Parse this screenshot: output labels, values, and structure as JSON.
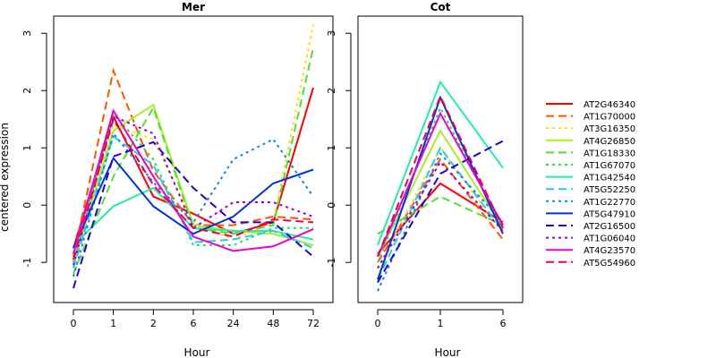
{
  "chart_data": [
    {
      "type": "line",
      "title": "Mer",
      "xlabel": "Hour",
      "ylabel": "centered expression",
      "categories": [
        "0",
        "1",
        "2",
        "6",
        "24",
        "48",
        "72"
      ],
      "ylim": [
        -1.7,
        3.3
      ],
      "yticks": [
        -1,
        0,
        1,
        2,
        3
      ],
      "grid": false,
      "series": [
        {
          "name": "AT2G46340",
          "values": [
            -0.75,
            1.55,
            0.15,
            -0.15,
            -0.5,
            -0.3,
            2.05
          ]
        },
        {
          "name": "AT1G70000",
          "values": [
            -0.9,
            2.35,
            0.6,
            -0.35,
            -0.35,
            -0.2,
            -0.25
          ]
        },
        {
          "name": "AT3G16350",
          "values": [
            -1.1,
            1.4,
            1.15,
            -0.3,
            -0.6,
            -0.3,
            3.15
          ]
        },
        {
          "name": "AT4G26850",
          "values": [
            -1.0,
            1.3,
            1.75,
            -0.35,
            -0.45,
            -0.5,
            -0.7
          ]
        },
        {
          "name": "AT1G18330",
          "values": [
            -1.2,
            0.5,
            1.7,
            -0.4,
            -0.5,
            -0.35,
            2.75
          ]
        },
        {
          "name": "AT1G67070",
          "values": [
            -1.0,
            1.6,
            0.8,
            -0.7,
            -0.7,
            -0.4,
            -0.4
          ]
        },
        {
          "name": "AT1G42540",
          "values": [
            -0.7,
            -0.02,
            0.3,
            -0.4,
            -0.45,
            -0.45,
            -0.6
          ]
        },
        {
          "name": "AT5G52250",
          "values": [
            -1.1,
            1.2,
            0.7,
            -0.65,
            -0.6,
            -0.45,
            -0.75
          ]
        },
        {
          "name": "AT1G22770",
          "values": [
            -1.25,
            1.25,
            0.4,
            -0.3,
            0.8,
            1.15,
            0.15
          ]
        },
        {
          "name": "AT5G47910",
          "values": [
            -0.75,
            0.82,
            -0.02,
            -0.5,
            -0.2,
            0.38,
            0.62
          ]
        },
        {
          "name": "AT2G16500",
          "values": [
            -1.45,
            0.85,
            1.1,
            0.3,
            -0.3,
            -0.3,
            -0.9
          ]
        },
        {
          "name": "AT1G06040",
          "values": [
            -1.05,
            1.55,
            1.25,
            -0.4,
            0.05,
            0.05,
            -0.2
          ]
        },
        {
          "name": "AT4G23570",
          "values": [
            -0.85,
            1.65,
            0.5,
            -0.55,
            -0.8,
            -0.72,
            -0.42
          ]
        },
        {
          "name": "AT5G54960",
          "values": [
            -0.95,
            1.5,
            0.35,
            -0.4,
            -0.55,
            -0.25,
            -0.3
          ]
        }
      ]
    },
    {
      "type": "line",
      "title": "Cot",
      "xlabel": "Hour",
      "ylabel": "",
      "categories": [
        "0",
        "1",
        "6"
      ],
      "ylim": [
        -1.7,
        3.3
      ],
      "yticks": [
        -1,
        0,
        1,
        2,
        3
      ],
      "grid": false,
      "series": [
        {
          "name": "AT2G46340",
          "values": [
            -0.85,
            0.38,
            -0.3
          ]
        },
        {
          "name": "AT1G70000",
          "values": [
            -1.0,
            0.8,
            -0.6
          ]
        },
        {
          "name": "AT3G16350",
          "values": [
            -1.1,
            1.0,
            -0.5
          ]
        },
        {
          "name": "AT4G26850",
          "values": [
            -0.9,
            1.3,
            -0.4
          ]
        },
        {
          "name": "AT1G18330",
          "values": [
            -0.5,
            0.15,
            -0.35
          ]
        },
        {
          "name": "AT1G67070",
          "values": [
            -1.0,
            1.7,
            -0.4
          ]
        },
        {
          "name": "AT1G42540",
          "values": [
            -0.7,
            2.15,
            0.65
          ]
        },
        {
          "name": "AT5G52250",
          "values": [
            -1.3,
            1.0,
            -0.45
          ]
        },
        {
          "name": "AT1G22770",
          "values": [
            -1.5,
            0.9,
            -0.3
          ]
        },
        {
          "name": "AT5G47910",
          "values": [
            -1.3,
            1.88,
            -0.5
          ]
        },
        {
          "name": "AT2G16500",
          "values": [
            -1.35,
            0.55,
            1.12
          ]
        },
        {
          "name": "AT1G06040",
          "values": [
            -1.1,
            0.75,
            -0.45
          ]
        },
        {
          "name": "AT4G23570",
          "values": [
            -0.9,
            1.6,
            -0.35
          ]
        },
        {
          "name": "AT5G54960",
          "values": [
            -0.9,
            1.9,
            -0.4
          ]
        }
      ]
    }
  ],
  "legend": {
    "placement": "right",
    "items": [
      {
        "name": "AT2G46340",
        "color": "#ff0000",
        "dash": "solid"
      },
      {
        "name": "AT1G70000",
        "color": "#ff5500",
        "dash": "dashed"
      },
      {
        "name": "AT3G16350",
        "color": "#ffdd00",
        "dash": "dotted"
      },
      {
        "name": "AT4G26850",
        "color": "#aaee22",
        "dash": "solid"
      },
      {
        "name": "AT1G18330",
        "color": "#55dd33",
        "dash": "dashed"
      },
      {
        "name": "AT1G67070",
        "color": "#22dd66",
        "dash": "dotted"
      },
      {
        "name": "AT1G42540",
        "color": "#22eeaa",
        "dash": "solid"
      },
      {
        "name": "AT5G52250",
        "color": "#22ccee",
        "dash": "dashed"
      },
      {
        "name": "AT1G22770",
        "color": "#1188dd",
        "dash": "dotted"
      },
      {
        "name": "AT5G47910",
        "color": "#0033dd",
        "dash": "solid"
      },
      {
        "name": "AT2G16500",
        "color": "#2200cc",
        "dash": "dashed"
      },
      {
        "name": "AT1G06040",
        "color": "#9900dd",
        "dash": "dotted"
      },
      {
        "name": "AT4G23570",
        "color": "#ee00cc",
        "dash": "solid"
      },
      {
        "name": "AT5G54960",
        "color": "#ee0055",
        "dash": "dashed"
      }
    ]
  }
}
